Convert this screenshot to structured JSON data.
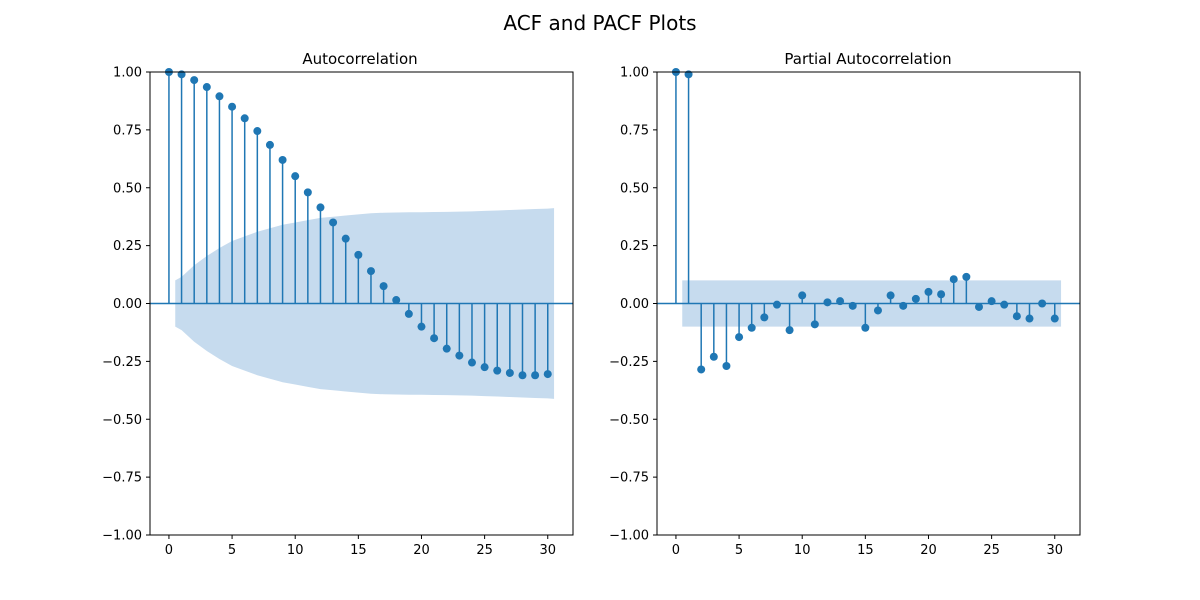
{
  "figure": {
    "suptitle": "ACF and PACF Plots"
  },
  "colors": {
    "series": "#1f77b4",
    "confidence_band": "#c6dbee",
    "axes": "#000000",
    "background": "#ffffff"
  },
  "chart_data": [
    {
      "type": "stem",
      "title": "Autocorrelation",
      "xlabel": "",
      "ylabel": "",
      "xlim": [
        -1.5,
        32
      ],
      "ylim": [
        -1.0,
        1.0
      ],
      "xticks": [
        0,
        5,
        10,
        15,
        20,
        25,
        30
      ],
      "xtick_labels": [
        "0",
        "5",
        "10",
        "15",
        "20",
        "25",
        "30"
      ],
      "yticks": [
        -1.0,
        -0.75,
        -0.5,
        -0.25,
        0.0,
        0.25,
        0.5,
        0.75,
        1.0
      ],
      "ytick_labels": [
        "−1.00",
        "−0.75",
        "−0.50",
        "−0.25",
        "0.00",
        "0.25",
        "0.50",
        "0.75",
        "1.00"
      ],
      "grid": false,
      "x": [
        0,
        1,
        2,
        3,
        4,
        5,
        6,
        7,
        8,
        9,
        10,
        11,
        12,
        13,
        14,
        15,
        16,
        17,
        18,
        19,
        20,
        21,
        22,
        23,
        24,
        25,
        26,
        27,
        28,
        29,
        30
      ],
      "values": [
        1.0,
        0.99,
        0.965,
        0.935,
        0.895,
        0.85,
        0.8,
        0.745,
        0.685,
        0.62,
        0.55,
        0.48,
        0.415,
        0.35,
        0.28,
        0.21,
        0.14,
        0.075,
        0.015,
        -0.045,
        -0.1,
        -0.15,
        -0.195,
        -0.225,
        -0.255,
        -0.275,
        -0.29,
        -0.3,
        -0.31,
        -0.31,
        -0.305
      ],
      "confidence_band": {
        "x": [
          0.5,
          1,
          2,
          3,
          4,
          5,
          6,
          7,
          8,
          9,
          10,
          11,
          12,
          13,
          14,
          15,
          16,
          17,
          18,
          19,
          20,
          21,
          22,
          23,
          24,
          25,
          26,
          27,
          28,
          29,
          30,
          30.5
        ],
        "upper": [
          0.1,
          0.115,
          0.165,
          0.205,
          0.24,
          0.27,
          0.29,
          0.31,
          0.325,
          0.34,
          0.35,
          0.36,
          0.37,
          0.375,
          0.38,
          0.385,
          0.39,
          0.392,
          0.393,
          0.394,
          0.394,
          0.395,
          0.396,
          0.397,
          0.398,
          0.4,
          0.402,
          0.404,
          0.406,
          0.408,
          0.41,
          0.412
        ]
      }
    },
    {
      "type": "stem",
      "title": "Partial Autocorrelation",
      "xlabel": "",
      "ylabel": "",
      "xlim": [
        -1.5,
        32
      ],
      "ylim": [
        -1.0,
        1.0
      ],
      "xticks": [
        0,
        5,
        10,
        15,
        20,
        25,
        30
      ],
      "xtick_labels": [
        "0",
        "5",
        "10",
        "15",
        "20",
        "25",
        "30"
      ],
      "yticks": [
        -1.0,
        -0.75,
        -0.5,
        -0.25,
        0.0,
        0.25,
        0.5,
        0.75,
        1.0
      ],
      "ytick_labels": [
        "−1.00",
        "−0.75",
        "−0.50",
        "−0.25",
        "0.00",
        "0.25",
        "0.50",
        "0.75",
        "1.00"
      ],
      "grid": false,
      "x": [
        0,
        1,
        2,
        3,
        4,
        5,
        6,
        7,
        8,
        9,
        10,
        11,
        12,
        13,
        14,
        15,
        16,
        17,
        18,
        19,
        20,
        21,
        22,
        23,
        24,
        25,
        26,
        27,
        28,
        29,
        30
      ],
      "values": [
        1.0,
        0.99,
        -0.285,
        -0.23,
        -0.27,
        -0.145,
        -0.105,
        -0.06,
        -0.005,
        -0.115,
        0.035,
        -0.09,
        0.005,
        0.01,
        -0.01,
        -0.105,
        -0.03,
        0.035,
        -0.01,
        0.02,
        0.05,
        0.04,
        0.105,
        0.115,
        -0.015,
        0.01,
        -0.005,
        -0.055,
        -0.065,
        0.0,
        -0.065
      ],
      "confidence_band": {
        "x": [
          0.5,
          30.5
        ],
        "upper": [
          0.1,
          0.1
        ]
      }
    }
  ]
}
